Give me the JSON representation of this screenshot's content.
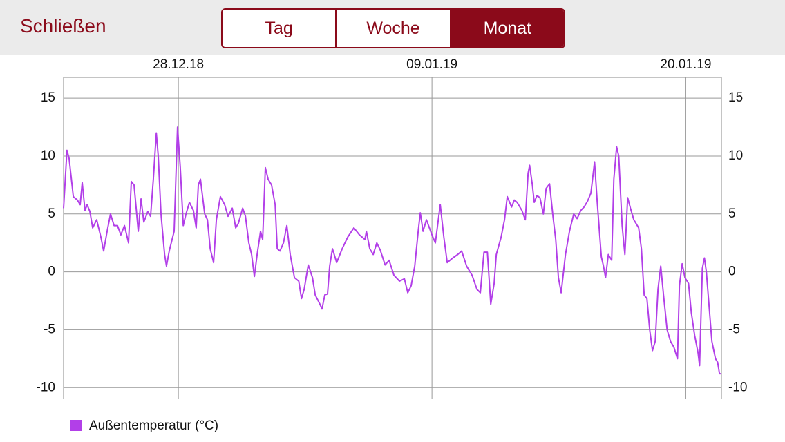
{
  "header": {
    "close": "Schließen",
    "segments": [
      "Tag",
      "Woche",
      "Monat"
    ],
    "selected_segment": 2
  },
  "chart_data": {
    "type": "line",
    "x": [
      0,
      0.16,
      0.26,
      0.46,
      0.65,
      0.78,
      0.88,
      1.01,
      1.11,
      1.24,
      1.37,
      1.56,
      1.76,
      1.89,
      2.05,
      2.21,
      2.38,
      2.54,
      2.7,
      2.87,
      3.06,
      3.19,
      3.32,
      3.52,
      3.65,
      3.78,
      3.97,
      4.1,
      4.23,
      4.37,
      4.46,
      4.59,
      4.76,
      4.85,
      4.98,
      5.21,
      5.37,
      5.5,
      5.64,
      5.77,
      5.93,
      6.12,
      6.25,
      6.35,
      6.45,
      6.65,
      6.78,
      6.91,
      7.07,
      7.2,
      7.39,
      7.59,
      7.75,
      7.95,
      8.11,
      8.24,
      8.44,
      8.57,
      8.73,
      8.86,
      8.99,
      9.12,
      9.28,
      9.38,
      9.51,
      9.64,
      9.8,
      9.97,
      10.07,
      10.2,
      10.36,
      10.52,
      10.68,
      10.88,
      11.08,
      11.21,
      11.34,
      11.53,
      11.73,
      11.86,
      12.08,
      12.18,
      12.31,
      12.44,
      12.54,
      12.67,
      12.87,
      13.13,
      13.39,
      13.68,
      13.94,
      14.2,
      14.27,
      14.43,
      14.59,
      14.76,
      14.92,
      15.15,
      15.34,
      15.57,
      15.83,
      16.06,
      16.22,
      16.38,
      16.55,
      16.71,
      16.81,
      16.94,
      17.1,
      17.36,
      17.52,
      17.75,
      17.92,
      18.08,
      18.34,
      18.57,
      18.76,
      18.99,
      19.25,
      19.48,
      19.64,
      19.81,
      19.97,
      20.13,
      20.29,
      20.39,
      20.62,
      20.78,
      20.91,
      21.11,
      21.24,
      21.37,
      21.6,
      21.76,
      21.89,
      21.96,
      22.09,
      22.18,
      22.31,
      22.45,
      22.61,
      22.74,
      22.9,
      23.06,
      23.19,
      23.32,
      23.45,
      23.65,
      23.84,
      24.04,
      24.2,
      24.37,
      24.53,
      24.69,
      24.85,
      25.02,
      25.15,
      25.34,
      25.44,
      25.54,
      25.67,
      25.83,
      25.93,
      26.06,
      26.16,
      26.32,
      26.45,
      26.58,
      26.71,
      26.87,
      27.1,
      27.23,
      27.36,
      27.49,
      27.62,
      27.75,
      27.88,
      28.01,
      28.14,
      28.27,
      28.44,
      28.6,
      28.76,
      28.93,
      29.02,
      29.15,
      29.28,
      29.45,
      29.58,
      29.74,
      29.9,
      29.97,
      30.1,
      30.2,
      30.29,
      30.42,
      30.55,
      30.72,
      30.82,
      30.91,
      31
    ],
    "series": [
      {
        "name": "Außentemperatur (°C)",
        "color": "#b23fe8",
        "values": [
          5.5,
          10.5,
          9.8,
          6.5,
          6.2,
          5.8,
          7.7,
          5.3,
          5.8,
          5.2,
          3.8,
          4.5,
          3.0,
          1.8,
          3.5,
          5.0,
          4.0,
          4.0,
          3.2,
          4.0,
          2.5,
          7.8,
          7.5,
          3.5,
          6.3,
          4.3,
          5.2,
          4.8,
          8.0,
          12.0,
          10.0,
          5.0,
          1.5,
          0.5,
          1.8,
          3.5,
          12.5,
          9.0,
          4.0,
          5.0,
          6.0,
          5.3,
          3.8,
          7.5,
          8.0,
          5.0,
          4.5,
          2.0,
          0.8,
          4.5,
          6.5,
          5.8,
          4.8,
          5.5,
          3.8,
          4.2,
          5.5,
          4.8,
          2.5,
          1.5,
          -0.4,
          1.5,
          3.5,
          2.8,
          9.0,
          8.0,
          7.5,
          5.8,
          2.0,
          1.8,
          2.5,
          4.0,
          1.5,
          -0.5,
          -0.8,
          -2.3,
          -1.5,
          0.6,
          -0.5,
          -2.0,
          -2.8,
          -3.2,
          -2.0,
          -1.9,
          0.5,
          2.0,
          0.8,
          2.0,
          3.0,
          3.8,
          3.2,
          2.8,
          3.5,
          2.0,
          1.5,
          2.5,
          1.9,
          0.6,
          1.0,
          -0.3,
          -0.8,
          -0.6,
          -1.8,
          -1.2,
          0.5,
          3.5,
          5.1,
          3.5,
          4.5,
          3.2,
          2.5,
          5.8,
          3.0,
          0.8,
          1.2,
          1.5,
          1.8,
          0.5,
          -0.3,
          -1.5,
          -1.8,
          1.7,
          1.7,
          -2.8,
          -1.0,
          1.5,
          3.0,
          4.5,
          6.5,
          5.6,
          6.2,
          6.0,
          5.3,
          4.5,
          8.5,
          9.2,
          7.5,
          6.0,
          6.6,
          6.4,
          5.0,
          7.2,
          7.6,
          4.8,
          2.8,
          -0.5,
          -1.8,
          1.5,
          3.5,
          5.0,
          4.6,
          5.3,
          5.6,
          6.1,
          6.8,
          9.5,
          6.0,
          1.3,
          0.5,
          -0.5,
          1.5,
          1.0,
          8.0,
          10.8,
          10.0,
          4.0,
          1.5,
          6.4,
          5.5,
          4.5,
          3.8,
          2.0,
          -2.0,
          -2.3,
          -5.0,
          -6.8,
          -6.0,
          -1.5,
          0.5,
          -2.0,
          -5.0,
          -6.0,
          -6.5,
          -7.5,
          -1.2,
          0.7,
          -0.5,
          -1.0,
          -3.5,
          -5.5,
          -7.0,
          -8.1,
          0.3,
          1.2,
          0.0,
          -3.0,
          -6.0,
          -7.5,
          -7.8,
          -8.8,
          -8.8
        ]
      }
    ],
    "xlim": [
      0,
      31
    ],
    "xticks": [
      {
        "value": 5.41,
        "label": "28.12.18"
      },
      {
        "value": 17.36,
        "label": "09.01.19"
      },
      {
        "value": 29.32,
        "label": "20.01.19"
      }
    ],
    "ylim": [
      -11,
      16.8
    ],
    "yticks": [
      15,
      10,
      5,
      0,
      -5,
      -10
    ],
    "grid": true
  }
}
